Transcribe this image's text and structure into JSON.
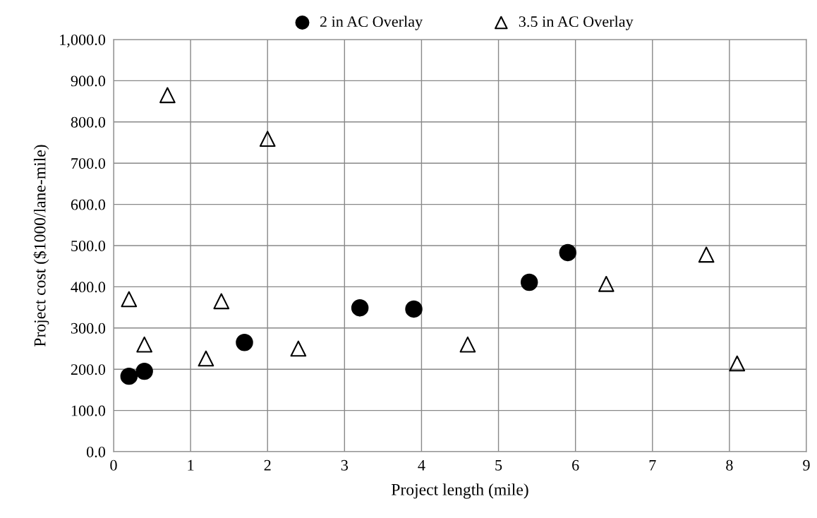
{
  "chart_data": {
    "type": "scatter",
    "xlabel": "Project length (mile)",
    "ylabel": "Project cost ($1000/lane-mile)",
    "xlim": [
      0,
      9
    ],
    "xticks": [
      0,
      1,
      2,
      3,
      4,
      5,
      6,
      7,
      8,
      9
    ],
    "ylim": [
      0,
      1000
    ],
    "yticks": [
      {
        "value": 0,
        "label": "0.0"
      },
      {
        "value": 100,
        "label": "100.0"
      },
      {
        "value": 200,
        "label": "200.0"
      },
      {
        "value": 300,
        "label": "300.0"
      },
      {
        "value": 400,
        "label": "400.0"
      },
      {
        "value": 500,
        "label": "500.0"
      },
      {
        "value": 600,
        "label": "600.0"
      },
      {
        "value": 700,
        "label": "700.0"
      },
      {
        "value": 800,
        "label": "800.0"
      },
      {
        "value": 900,
        "label": "900.0"
      },
      {
        "value": 1000,
        "label": "1,000.0"
      }
    ],
    "grid": true,
    "legend": "top",
    "series": [
      {
        "name": "2 in AC Overlay",
        "color": "#000000",
        "marker": "circle",
        "x": [
          0.2,
          0.4,
          1.7,
          3.2,
          3.9,
          5.4,
          5.9
        ],
        "values": [
          183,
          195,
          265,
          349,
          346,
          411,
          483
        ]
      },
      {
        "name": "3.5 in AC Overlay",
        "color": "#000000",
        "marker": "triangle",
        "x": [
          0.2,
          0.4,
          0.7,
          1.2,
          1.4,
          2.0,
          2.4,
          4.6,
          6.4,
          7.7,
          8.1
        ],
        "values": [
          370,
          260,
          865,
          226,
          365,
          759,
          250,
          260,
          407,
          478,
          214
        ]
      }
    ]
  }
}
